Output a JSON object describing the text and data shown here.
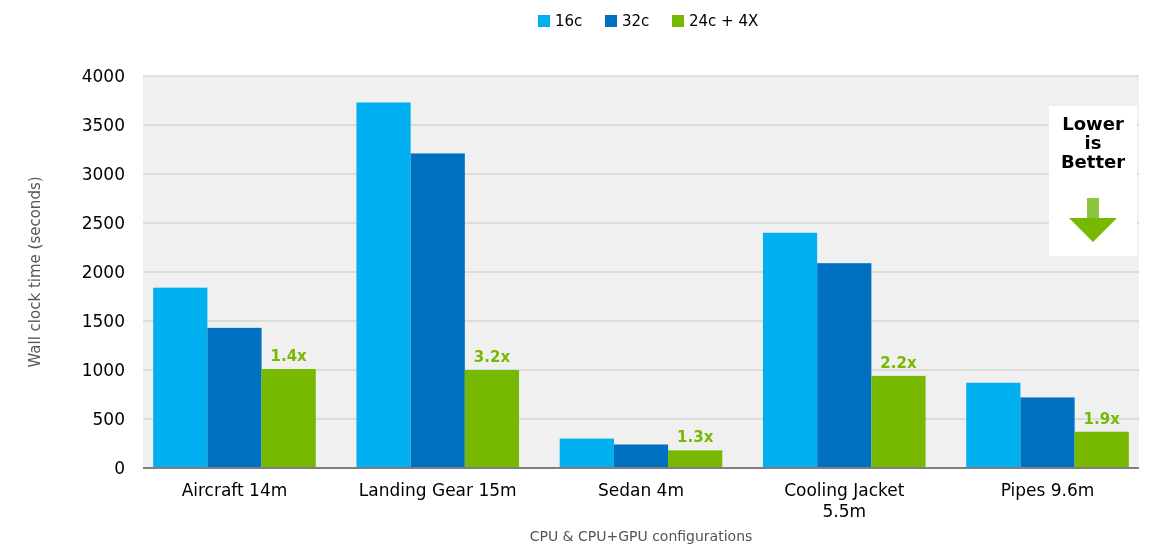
{
  "chart_data": {
    "type": "bar",
    "xlabel": "CPU & CPU+GPU configurations",
    "ylabel": "Wall clock time (seconds)",
    "categories": [
      "Aircraft 14m",
      "Landing Gear 15m",
      "Sedan 4m",
      "Cooling Jacket 5.5m",
      "Pipes 9.6m"
    ],
    "series": [
      {
        "name": "16c",
        "color": "#00b0f0",
        "values": [
          1840,
          3730,
          300,
          2400,
          870
        ]
      },
      {
        "name": "32c",
        "color": "#0070c0",
        "values": [
          1430,
          3210,
          240,
          2090,
          720
        ]
      },
      {
        "name": "24c + 4X",
        "color": "#76b900",
        "values": [
          1010,
          1000,
          180,
          940,
          370
        ]
      }
    ],
    "ylim": [
      0,
      4000
    ],
    "yticks": [
      0,
      500,
      1000,
      1500,
      2000,
      2500,
      3000,
      3500,
      4000
    ],
    "grid": "y",
    "legend": "top",
    "annotations": [
      "Lower is Better",
      "1.4x",
      "3.2x",
      "1.3x",
      "2.2x",
      "1.9x"
    ]
  }
}
